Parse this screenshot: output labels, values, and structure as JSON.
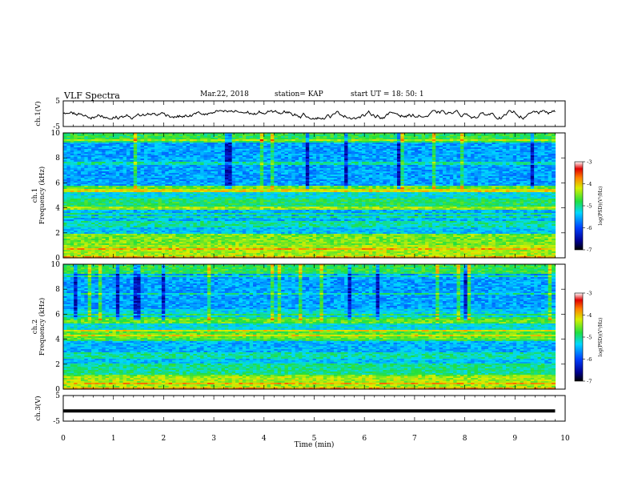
{
  "header": {
    "title": "VLF Spectra",
    "date": "Mar.22, 2018",
    "station": "station= KAP",
    "start": "start  UT =   18: 50: 1"
  },
  "chart_data": [
    {
      "type": "line",
      "name": "ch1-waveform",
      "ylabel": "ch.1(V)",
      "xlim": [
        0,
        10
      ],
      "ylim": [
        -5,
        5
      ],
      "yticks": [
        -5,
        5
      ],
      "note_values": "noisy waveform oscillating roughly between -2 and 1 V"
    },
    {
      "type": "heatmap",
      "name": "ch1-spectrogram",
      "ylabel": "ch.1\nFrequency (kHz)",
      "xlim": [
        0,
        9.8
      ],
      "ylim": [
        0,
        10
      ],
      "yticks": [
        0,
        2,
        4,
        6,
        8,
        10
      ],
      "colorbar": {
        "label": "log(PSD)(V²/Hz)",
        "range": [
          -7,
          -3
        ],
        "ticks": [
          -3,
          -4,
          -5,
          -6,
          -7
        ]
      }
    },
    {
      "type": "heatmap",
      "name": "ch2-spectrogram",
      "ylabel": "ch.2\nFrequency (kHz)",
      "xlim": [
        0,
        9.8
      ],
      "ylim": [
        0,
        10
      ],
      "yticks": [
        0,
        2,
        4,
        6,
        8,
        10
      ],
      "colorbar": {
        "label": "log(PSD)(V²/Hz)",
        "range": [
          -7,
          -3
        ],
        "ticks": [
          -3,
          -4,
          -5,
          -6,
          -7
        ]
      }
    },
    {
      "type": "line",
      "name": "ch3-waveform",
      "ylabel": "ch.3(V)",
      "xlim": [
        0,
        10
      ],
      "ylim": [
        -5,
        5
      ],
      "yticks": [
        -5,
        5
      ],
      "constant_value": -1,
      "xlabel": "Time (min)",
      "xticks": [
        0,
        1,
        2,
        3,
        4,
        5,
        6,
        7,
        8,
        9,
        10
      ]
    }
  ]
}
